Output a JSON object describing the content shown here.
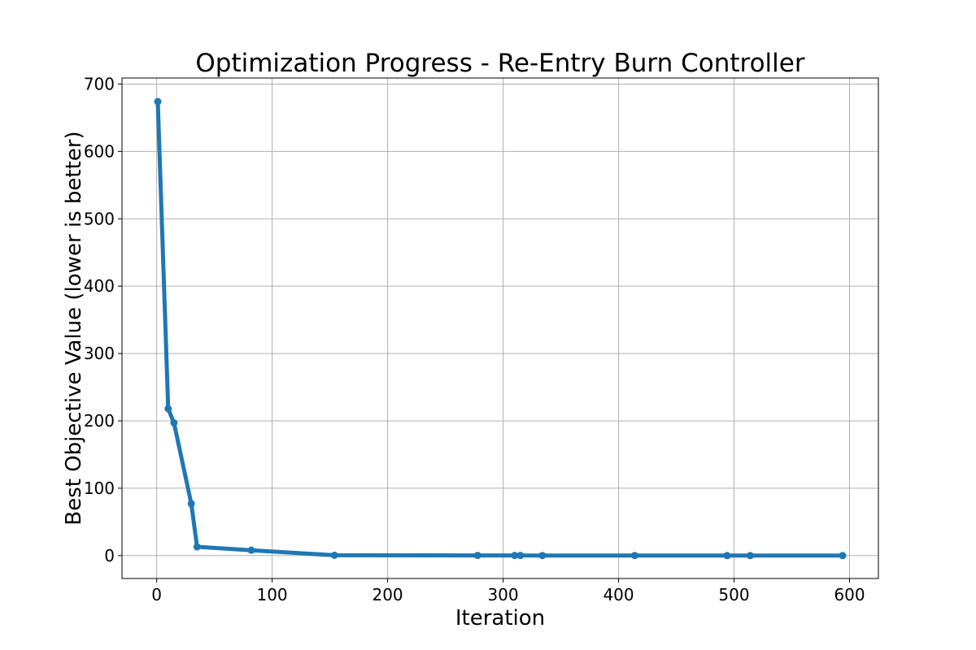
{
  "chart_data": {
    "type": "line",
    "title": "Optimization Progress - Re-Entry Burn Controller",
    "xlabel": "Iteration",
    "ylabel": "Best Objective Value (lower is better)",
    "xlim": [
      -30,
      625
    ],
    "ylim": [
      -34,
      709
    ],
    "xticks": [
      0,
      100,
      200,
      300,
      400,
      500,
      600
    ],
    "yticks": [
      0,
      100,
      200,
      300,
      400,
      500,
      600,
      700
    ],
    "grid": true,
    "series": [
      {
        "color": "#1f77b4",
        "marker": "circle",
        "x": [
          1,
          10,
          15,
          30,
          35,
          82,
          154,
          278,
          310,
          315,
          334,
          414,
          494,
          514,
          594
        ],
        "y": [
          674,
          218,
          197,
          77,
          13,
          8,
          0.5,
          0.3,
          0.2,
          0.2,
          0.1,
          0.1,
          0.05,
          0.05,
          0.02
        ]
      }
    ]
  }
}
